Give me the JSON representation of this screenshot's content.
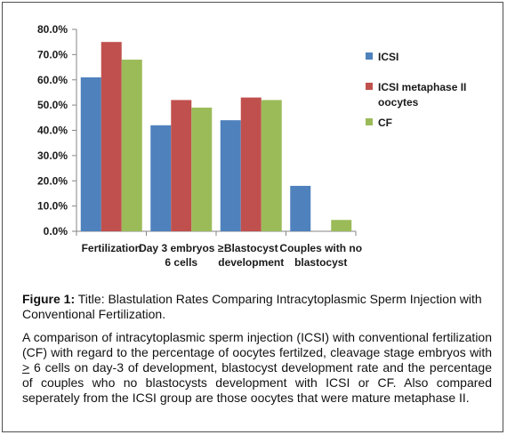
{
  "chart_data": {
    "type": "bar",
    "categories": [
      [
        "Fertilization"
      ],
      [
        "Day 3 embryos ≥",
        "6 cells"
      ],
      [
        "Blastocyst",
        "development"
      ],
      [
        "Couples with no",
        "blastocyst"
      ]
    ],
    "series": [
      {
        "name": "ICSI",
        "name_lines": [
          "ICSI"
        ],
        "color": "#4f81bd",
        "values": [
          61,
          42,
          44,
          18
        ]
      },
      {
        "name": "ICSI metaphase II oocytes",
        "name_lines": [
          "ICSI metaphase II",
          "oocytes"
        ],
        "color": "#c0504d",
        "values": [
          75,
          52,
          53,
          null
        ]
      },
      {
        "name": "CF",
        "name_lines": [
          "CF"
        ],
        "color": "#9bbb59",
        "values": [
          68,
          49,
          52,
          4.5
        ]
      }
    ],
    "yticks": [
      "0.0%",
      "10.0%",
      "20.0%",
      "30.0%",
      "40.0%",
      "50.0%",
      "60.0%",
      "70.0%",
      "80.0%"
    ],
    "ylim": [
      0,
      80
    ],
    "grid": false,
    "legend_position": "right"
  },
  "caption": {
    "label": "Figure 1:",
    "text": " Title: Blastulation Rates Comparing Intracytoplasmic Sperm Injection with Conventional Fertilization."
  },
  "description": {
    "part1": "A comparison of intracytoplasmic sperm injection (ICSI) with conventional fertilization (CF) with regard to the percentage of oocytes fertilzed, cleavage stage embryos with ",
    "gte": ">",
    "part2": " 6 cells on day-3 of development, blastocyst development rate and the percentage of couples who no blastocysts development with ICSI or CF. Also compared seperately from the ICSI group are those oocytes that were mature metaphase II."
  }
}
